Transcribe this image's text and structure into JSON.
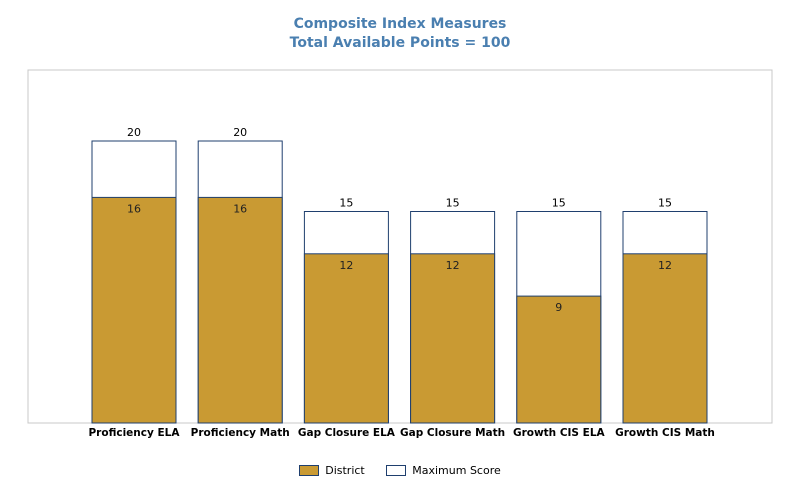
{
  "chart_data": {
    "type": "bar",
    "title": "Composite Index Measures",
    "subtitle": "Total Available Points = 100",
    "categories": [
      "Proficiency ELA",
      "Proficiency Math",
      "Gap Closure ELA",
      "Gap Closure Math",
      "Growth CIS ELA",
      "Growth CIS Math"
    ],
    "series": [
      {
        "name": "District",
        "values": [
          16,
          16,
          12,
          12,
          9,
          12
        ]
      },
      {
        "name": "Maximum Score",
        "values": [
          20,
          20,
          15,
          15,
          15,
          15
        ]
      }
    ],
    "ylim": [
      0,
      25
    ],
    "grid": false,
    "legend_position": "bottom",
    "colors": {
      "district": "#c99a33",
      "maximum": "#ffffff",
      "outline": "#1f3f6e"
    }
  }
}
